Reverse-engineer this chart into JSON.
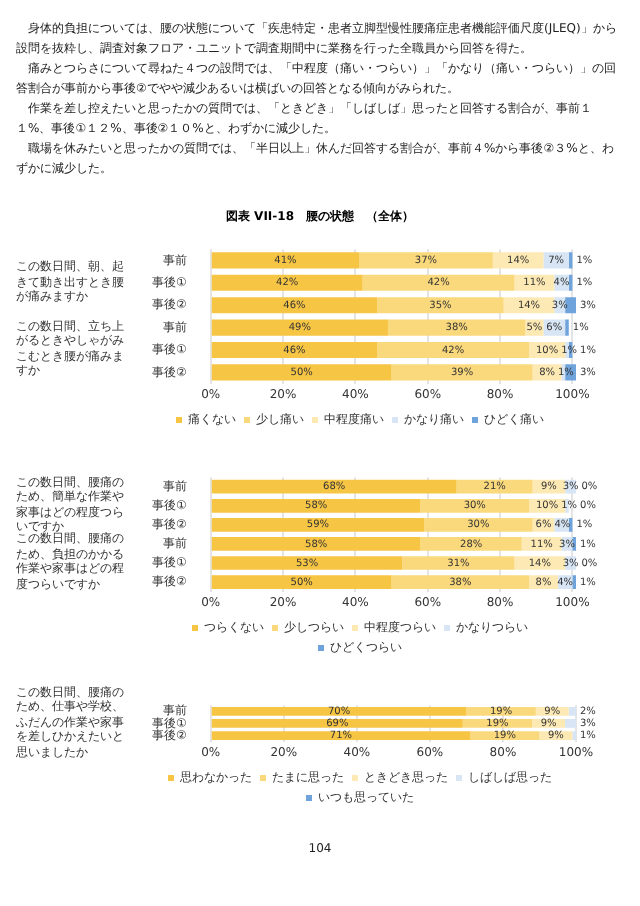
{
  "chart_data": [
    {
      "type": "other",
      "annotations": [
        "身体的負担については、腰の状態について「疾患特定・患者立脚型慢性腰痛症患者機能評価尺度(JLEQ)」から設問を抜粋し、調査対象フロア・ユニットで調査期間中に業務を行った全職員から回答を得た。",
        "痛みとつらさについて尋ねた４つの設問では、「中程度（痛い・つらい）」「かなり（痛い・つらい）」の回答割合が事前から事後②でやや減少あるいは横ばいの回答となる傾向がみられた。",
        "作業を差し控えたいと思ったかの質問では、「ときどき」「しばしば」思ったと回答する割合が、事前１１%、事後①１２%、事後②１０%と、わずかに減少した。",
        "職場を休みたいと思ったかの質問では、「半日以上」休んだ回答する割合が、事前４%から事後②３%と、わずかに減少した。"
      ]
    },
    {
      "type": "bar",
      "title": "図表 VII-18　腰の状態　（全体）",
      "orientation": "horizontal",
      "stacked": true,
      "legend": "bottom",
      "grid": "x",
      "categories": [
        "事前",
        "事後①",
        "事後②",
        "事前",
        "事後①",
        "事後②"
      ],
      "annotations": [
        "この数日間、朝、起きて動き出すとき腰が痛みますか",
        "この数日間、立ち上がるときやしゃがみこむとき腰が痛みますか"
      ],
      "xlim": [
        0,
        101
      ],
      "xticks": [
        {
          "value": 0,
          "label": "0%"
        },
        {
          "value": 20,
          "label": "20%"
        },
        {
          "value": 40,
          "label": "40%"
        },
        {
          "value": 60,
          "label": "60%"
        },
        {
          "value": 80,
          "label": "80%"
        },
        {
          "value": 100,
          "label": "100%"
        }
      ],
      "series": [
        {
          "name": "痛くない",
          "color": "#f7c544",
          "values": [
            41,
            42,
            46,
            49,
            46,
            50
          ],
          "value_labels": [
            "41%",
            "42%",
            "46%",
            "49%",
            "46%",
            "50%"
          ]
        },
        {
          "name": "少し痛い",
          "color": "#fad87c",
          "values": [
            37,
            42,
            35,
            38,
            42,
            39
          ],
          "value_labels": [
            "37%",
            "42%",
            "35%",
            "38%",
            "42%",
            "39%"
          ]
        },
        {
          "name": "中程度痛い",
          "color": "#fde9b4",
          "values": [
            14,
            11,
            14,
            5,
            10,
            8
          ],
          "value_labels": [
            "14%",
            "11%",
            "14%",
            "5%",
            "10%",
            "8%"
          ]
        },
        {
          "name": "かなり痛い",
          "color": "#d7e5f4",
          "values": [
            7,
            4,
            3,
            6,
            1,
            1
          ],
          "value_labels": [
            "7%",
            "4%",
            "3%",
            "6%",
            "1%",
            "1%"
          ]
        },
        {
          "name": "ひどく痛い",
          "color": "#6fa3db",
          "values": [
            1,
            1,
            3,
            1,
            1,
            3
          ],
          "value_labels": [
            "1%",
            "1%",
            "3%",
            "1%",
            "1%",
            "3%"
          ]
        }
      ]
    },
    {
      "type": "bar",
      "orientation": "horizontal",
      "stacked": true,
      "legend": "bottom",
      "grid": "x",
      "categories": [
        "事前",
        "事後①",
        "事後②",
        "事前",
        "事後①",
        "事後②"
      ],
      "annotations": [
        "この数日間、腰痛のため、簡単な作業や家事はどの程度つらいですか",
        "この数日間、腰痛のため、負担のかかる作業や家事はどの程度つらいですか"
      ],
      "xlim": [
        0,
        101
      ],
      "xticks": [
        {
          "value": 0,
          "label": "0%"
        },
        {
          "value": 20,
          "label": "20%"
        },
        {
          "value": 40,
          "label": "40%"
        },
        {
          "value": 60,
          "label": "60%"
        },
        {
          "value": 80,
          "label": "80%"
        },
        {
          "value": 100,
          "label": "100%"
        }
      ],
      "series": [
        {
          "name": "つらくない",
          "color": "#f7c544",
          "values": [
            68,
            58,
            59,
            58,
            53,
            50
          ],
          "value_labels": [
            "68%",
            "58%",
            "59%",
            "58%",
            "53%",
            "50%"
          ]
        },
        {
          "name": "少しつらい",
          "color": "#fad87c",
          "values": [
            21,
            30,
            30,
            28,
            31,
            38
          ],
          "value_labels": [
            "21%",
            "30%",
            "30%",
            "28%",
            "31%",
            "38%"
          ]
        },
        {
          "name": "中程度つらい",
          "color": "#fde9b4",
          "values": [
            9,
            10,
            6,
            11,
            14,
            8
          ],
          "value_labels": [
            "9%",
            "10%",
            "6%",
            "11%",
            "14%",
            "8%"
          ]
        },
        {
          "name": "かなりつらい",
          "color": "#d7e5f4",
          "values": [
            3,
            1,
            4,
            3,
            3,
            4
          ],
          "value_labels": [
            "3%",
            "1%",
            "4%",
            "3%",
            "3%",
            "4%"
          ]
        },
        {
          "name": "ひどくつらい",
          "color": "#6fa3db",
          "values": [
            0,
            0,
            1,
            1,
            0,
            1
          ],
          "value_labels": [
            "0%",
            "0%",
            "1%",
            "1%",
            "0%",
            "1%"
          ]
        }
      ]
    },
    {
      "type": "bar",
      "orientation": "horizontal",
      "stacked": true,
      "legend": "bottom",
      "grid": "x",
      "categories": [
        "事前",
        "事後①",
        "事後②"
      ],
      "annotations": [
        "この数日間、腰痛のため、仕事や学校、ふだんの作業や家事を差しひかえたいと思いましたか"
      ],
      "xlim": [
        0,
        100
      ],
      "xticks": [
        {
          "value": 0,
          "label": "0%"
        },
        {
          "value": 20,
          "label": "20%"
        },
        {
          "value": 40,
          "label": "40%"
        },
        {
          "value": 60,
          "label": "60%"
        },
        {
          "value": 80,
          "label": "80%"
        },
        {
          "value": 100,
          "label": "100%"
        }
      ],
      "series": [
        {
          "name": "思わなかった",
          "color": "#f7c544",
          "values": [
            70,
            69,
            71
          ],
          "value_labels": [
            "70%",
            "69%",
            "71%"
          ]
        },
        {
          "name": "たまに思った",
          "color": "#fad87c",
          "values": [
            19,
            19,
            19
          ],
          "value_labels": [
            "19%",
            "19%",
            "19%"
          ]
        },
        {
          "name": "ときどき思った",
          "color": "#fde9b4",
          "values": [
            9,
            9,
            9
          ],
          "value_labels": [
            "9%",
            "9%",
            "9%"
          ]
        },
        {
          "name": "しばしば思った",
          "color": "#d7e5f4",
          "values": [
            2,
            3,
            1
          ],
          "value_labels": [
            "2%",
            "3%",
            "1%"
          ]
        },
        {
          "name": "いつも思っていた",
          "color": "#6fa3db",
          "values": [
            null,
            null,
            null
          ]
        }
      ]
    },
    {
      "type": "other",
      "annotations": [
        "104"
      ]
    }
  ]
}
